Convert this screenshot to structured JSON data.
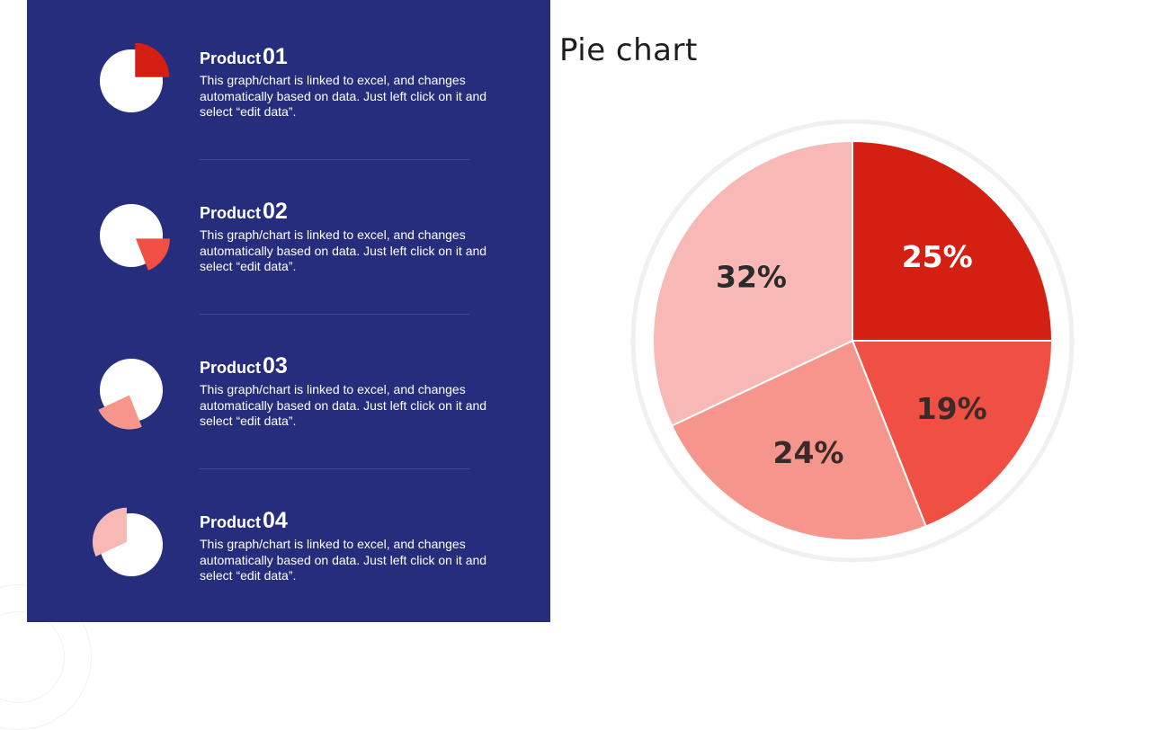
{
  "title": "Pie chart",
  "products": [
    {
      "label": "Product",
      "number": "01",
      "description": "This graph/chart is linked to excel, and changes automatically based on data. Just left click on it and select “edit data”.",
      "color": "#d41f13"
    },
    {
      "label": "Product",
      "number": "02",
      "description": "This graph/chart is linked to excel, and changes automatically based on data. Just left click on it and select “edit data”.",
      "color": "#ef5043"
    },
    {
      "label": "Product",
      "number": "03",
      "description": "This graph/chart is linked to excel, and changes automatically based on data. Just left click on it and select “edit data”.",
      "color": "#f5958c"
    },
    {
      "label": "Product",
      "number": "04",
      "description": "This graph/chart is linked to excel, and changes automatically based on data. Just left click on it and select “edit data”.",
      "color": "#f8b9b6"
    }
  ],
  "chart_data": {
    "type": "pie",
    "title": "Pie chart",
    "categories": [
      "Product 01",
      "Product 02",
      "Product 03",
      "Product 04"
    ],
    "values": [
      25,
      19,
      24,
      32
    ],
    "labels": [
      "25%",
      "19%",
      "24%",
      "32%"
    ],
    "colors": [
      "#d41f13",
      "#ef5043",
      "#f5958c",
      "#f8b9b6"
    ],
    "label_colors": [
      "#ffffff",
      "#3a2a2a",
      "#3a2a2a",
      "#2b2b2b"
    ],
    "start_angle_deg": 0,
    "direction": "clockwise"
  },
  "colors": {
    "panel_bg": "#262d7d",
    "page_bg": "#ffffff",
    "title_text": "#1e1e1e"
  }
}
